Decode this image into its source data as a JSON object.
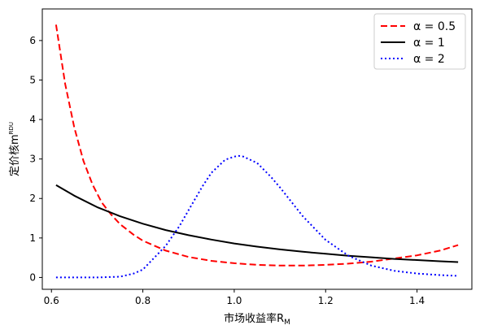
{
  "chart_data": {
    "type": "line",
    "title": "",
    "xlabel": "市场收益率R",
    "xlabel_sub": "M",
    "ylabel": "定价核m",
    "ylabel_sup": "RDU",
    "xlim": [
      0.58,
      1.52
    ],
    "ylim": [
      -0.3,
      6.8
    ],
    "xticks": [
      0.6,
      0.8,
      1.0,
      1.2,
      1.4
    ],
    "xtick_labels": [
      "0.6",
      "0.8",
      "1.0",
      "1.2",
      "1.4"
    ],
    "yticks": [
      0,
      1,
      2,
      3,
      4,
      5,
      6
    ],
    "ytick_labels": [
      "0",
      "1",
      "2",
      "3",
      "4",
      "5",
      "6"
    ],
    "grid": false,
    "legend_position": "top-right",
    "series": [
      {
        "name": "α = 0.5",
        "legend_label": "α = 0.5",
        "color": "#ff0000",
        "style": "dashed",
        "x": [
          0.61,
          0.63,
          0.65,
          0.67,
          0.69,
          0.71,
          0.73,
          0.75,
          0.78,
          0.8,
          0.85,
          0.9,
          0.95,
          1.0,
          1.05,
          1.1,
          1.15,
          1.2,
          1.25,
          1.3,
          1.35,
          1.4,
          1.45,
          1.49
        ],
        "y": [
          6.4,
          4.9,
          3.8,
          2.95,
          2.35,
          1.9,
          1.6,
          1.35,
          1.08,
          0.93,
          0.68,
          0.52,
          0.42,
          0.36,
          0.32,
          0.3,
          0.3,
          0.32,
          0.35,
          0.4,
          0.48,
          0.56,
          0.68,
          0.82
        ]
      },
      {
        "name": "α = 1",
        "legend_label": "α = 1",
        "color": "#000000",
        "style": "solid",
        "x": [
          0.61,
          0.65,
          0.7,
          0.75,
          0.8,
          0.85,
          0.9,
          0.95,
          1.0,
          1.05,
          1.1,
          1.15,
          1.2,
          1.25,
          1.3,
          1.35,
          1.4,
          1.45,
          1.49
        ],
        "y": [
          2.34,
          2.07,
          1.78,
          1.55,
          1.36,
          1.2,
          1.07,
          0.96,
          0.86,
          0.78,
          0.71,
          0.65,
          0.6,
          0.55,
          0.51,
          0.47,
          0.44,
          0.41,
          0.39
        ]
      },
      {
        "name": "α = 2",
        "legend_label": "α = 2",
        "color": "#0000ff",
        "style": "dotted",
        "x": [
          0.61,
          0.65,
          0.7,
          0.75,
          0.78,
          0.8,
          0.85,
          0.88,
          0.9,
          0.93,
          0.95,
          0.98,
          1.0,
          1.01,
          1.02,
          1.05,
          1.08,
          1.1,
          1.15,
          1.2,
          1.25,
          1.3,
          1.35,
          1.4,
          1.45,
          1.49
        ],
        "y": [
          0.0,
          0.0,
          0.0,
          0.02,
          0.1,
          0.2,
          0.8,
          1.3,
          1.7,
          2.3,
          2.65,
          2.98,
          3.06,
          3.08,
          3.06,
          2.9,
          2.55,
          2.28,
          1.55,
          0.95,
          0.55,
          0.3,
          0.17,
          0.1,
          0.06,
          0.04
        ]
      }
    ]
  }
}
